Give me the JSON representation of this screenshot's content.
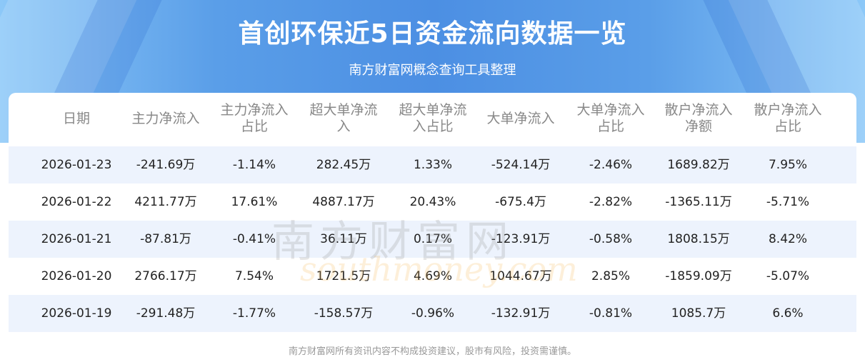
{
  "title": "首创环保近5日资金流向数据一览",
  "subtitle": "南方财富网概念查询工具整理",
  "watermark": {
    "cn": "南方财富网",
    "en": "southmoney.com"
  },
  "table": {
    "headers": [
      "日期",
      "主力净流入",
      "主力净流入占比",
      "超大单净流入",
      "超大单净流入占比",
      "大单净流入",
      "大单净流入占比",
      "散户净流入净额",
      "散户净流入占比"
    ],
    "rows": [
      [
        "2026-01-23",
        "-241.69万",
        "-1.14%",
        "282.45万",
        "1.33%",
        "-524.14万",
        "-2.46%",
        "1689.82万",
        "7.95%"
      ],
      [
        "2026-01-22",
        "4211.77万",
        "17.61%",
        "4887.17万",
        "20.43%",
        "-675.4万",
        "-2.82%",
        "-1365.11万",
        "-5.71%"
      ],
      [
        "2026-01-21",
        "-87.81万",
        "-0.41%",
        "36.11万",
        "0.17%",
        "-123.91万",
        "-0.58%",
        "1808.15万",
        "8.42%"
      ],
      [
        "2026-01-20",
        "2766.17万",
        "7.54%",
        "1721.5万",
        "4.69%",
        "1044.67万",
        "2.85%",
        "-1859.09万",
        "-5.07%"
      ],
      [
        "2026-01-19",
        "-291.48万",
        "-1.77%",
        "-158.57万",
        "-0.96%",
        "-132.91万",
        "-0.81%",
        "1085.7万",
        "6.6%"
      ]
    ]
  },
  "footer": "南方财富网所有资讯内容不构成投资建议，股市有风险，投资需谨慎。",
  "colors": {
    "banner": "#4c8fe3",
    "row_shade": "#edf3fd"
  }
}
